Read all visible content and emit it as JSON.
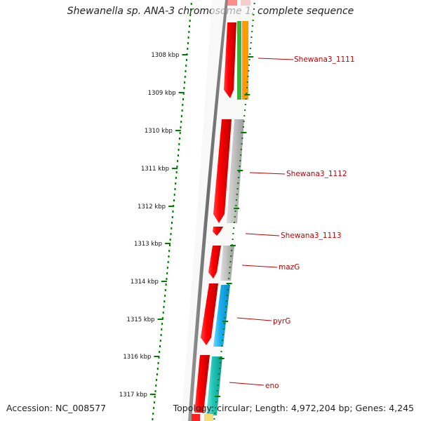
{
  "title": "Shewanella sp. ANA-3 chromosome 1, complete sequence",
  "footer": {
    "accession": "Accession: NC_008577",
    "summary": "Topology: circular; Length: 4,972,204 bp; Genes: 4,245"
  },
  "ticks": [
    "1308 kbp",
    "1309 kbp",
    "1310 kbp",
    "1311 kbp",
    "1312 kbp",
    "1313 kbp",
    "1314 kbp",
    "1315 kbp",
    "1316 kbp",
    "1317 kbp"
  ],
  "gene_labels": [
    "Shewana3_1111",
    "Shewana3_1112",
    "Shewana3_1113",
    "mazG",
    "pyrG",
    "eno"
  ],
  "colors": {
    "forward_gene": "#ff0000",
    "tick_mark": "#007a00",
    "backbone": "#777777",
    "label": "#c00000",
    "track_grey": "#b8b8b8",
    "track_green": "#39b339",
    "track_orange": "#ff9a00",
    "track_blue": "#19b0f0",
    "track_teal": "#1fc7b8",
    "track_yellow": "#f2dc7a"
  }
}
